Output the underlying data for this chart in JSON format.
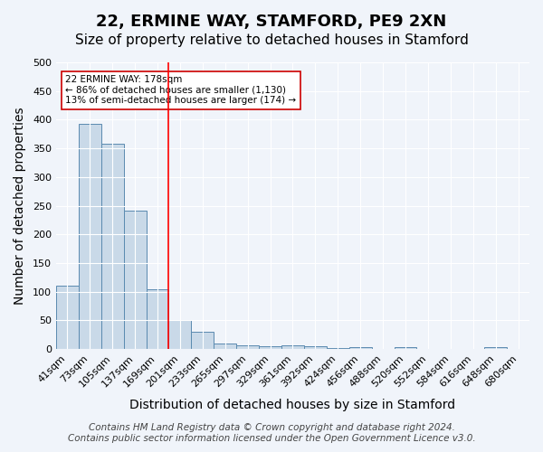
{
  "title1": "22, ERMINE WAY, STAMFORD, PE9 2XN",
  "title2": "Size of property relative to detached houses in Stamford",
  "xlabel": "Distribution of detached houses by size in Stamford",
  "ylabel": "Number of detached properties",
  "categories": [
    "41sqm",
    "73sqm",
    "105sqm",
    "137sqm",
    "169sqm",
    "201sqm",
    "233sqm",
    "265sqm",
    "297sqm",
    "329sqm",
    "361sqm",
    "392sqm",
    "424sqm",
    "456sqm",
    "488sqm",
    "520sqm",
    "552sqm",
    "584sqm",
    "616sqm",
    "648sqm",
    "680sqm"
  ],
  "values": [
    111,
    393,
    358,
    242,
    104,
    50,
    30,
    10,
    7,
    5,
    6,
    5,
    1,
    3,
    0,
    4,
    0,
    0,
    0,
    4,
    0
  ],
  "bar_color": "#c9d9e8",
  "bar_edge_color": "#5a8ab0",
  "background_color": "#f0f4fa",
  "grid_color": "#ffffff",
  "red_line_x": 4.5,
  "annotation_line1": "22 ERMINE WAY: 178sqm",
  "annotation_line2": "← 86% of detached houses are smaller (1,130)",
  "annotation_line3": "13% of semi-detached houses are larger (174) →",
  "annotation_box_color": "#ffffff",
  "annotation_box_edge_color": "#cc0000",
  "ylim": [
    0,
    500
  ],
  "yticks": [
    0,
    50,
    100,
    150,
    200,
    250,
    300,
    350,
    400,
    450,
    500
  ],
  "footer_line1": "Contains HM Land Registry data © Crown copyright and database right 2024.",
  "footer_line2": "Contains public sector information licensed under the Open Government Licence v3.0.",
  "title1_fontsize": 13,
  "title2_fontsize": 11,
  "axis_label_fontsize": 10,
  "tick_fontsize": 8,
  "footer_fontsize": 7.5
}
